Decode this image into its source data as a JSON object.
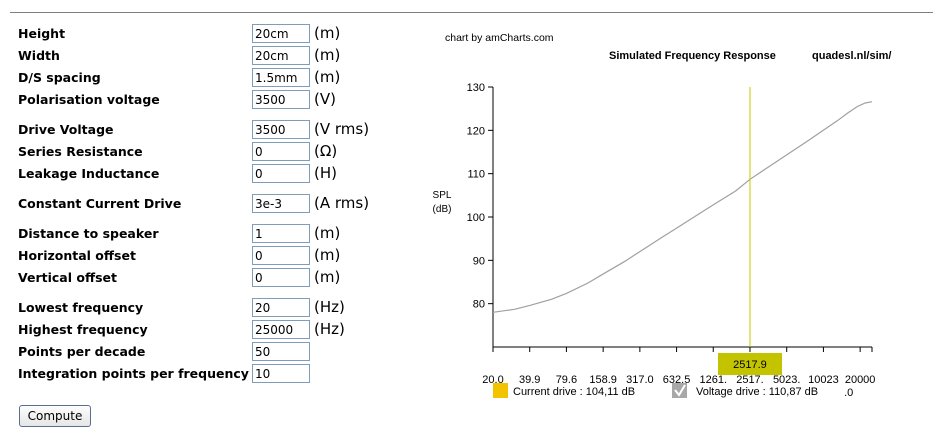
{
  "form": {
    "fields": [
      {
        "label": "Height",
        "value": "20cm",
        "unit": "(m)"
      },
      {
        "label": "Width",
        "value": "20cm",
        "unit": "(m)"
      },
      {
        "label": "D/S spacing",
        "value": "1.5mm",
        "unit": "(m)"
      },
      {
        "label": "Polarisation voltage",
        "value": "3500",
        "unit": "(V)"
      },
      {
        "label": "Drive Voltage",
        "value": "3500",
        "unit": "(V rms)"
      },
      {
        "label": "Series Resistance",
        "value": "0",
        "unit": "(Ω)"
      },
      {
        "label": "Leakage Inductance",
        "value": "0",
        "unit": "(H)"
      },
      {
        "label": "Constant Current Drive",
        "value": "3e-3",
        "unit": "(A rms)"
      },
      {
        "label": "Distance to speaker",
        "value": "1",
        "unit": "(m)"
      },
      {
        "label": "Horizontal offset",
        "value": "0",
        "unit": "(m)"
      },
      {
        "label": "Vertical offset",
        "value": "0",
        "unit": "(m)"
      },
      {
        "label": "Lowest frequency",
        "value": "20",
        "unit": "(Hz)"
      },
      {
        "label": "Highest frequency",
        "value": "25000",
        "unit": "(Hz)"
      },
      {
        "label": "Points per decade",
        "value": "50",
        "unit": ""
      },
      {
        "label": "Integration points per frequency",
        "value": "10",
        "unit": ""
      }
    ],
    "compute_label": "Compute"
  },
  "chart": {
    "credit": "chart by amCharts.com",
    "site": "quadesl.nl/sim/"
  },
  "chart_data": {
    "type": "line",
    "title": "Simulated Frequency Response",
    "ylabel": "SPL (dB)",
    "ylabel_lines": [
      "SPL",
      "(dB)"
    ],
    "ylim": [
      70,
      130
    ],
    "yticks": [
      80,
      90,
      100,
      110,
      120,
      130
    ],
    "xscale": "log",
    "xlim": [
      20,
      25000
    ],
    "xticks": [
      "20.0",
      "39.9",
      "79.6",
      "158.9",
      "317.0",
      "632.5",
      "1261.",
      "2517.",
      "5023.",
      "10023",
      "20000"
    ],
    "x_tick_values": [
      20,
      39.9,
      79.6,
      158.9,
      317,
      632.5,
      1261,
      2517,
      5023,
      10023,
      20000
    ],
    "x_extra_label": ".0",
    "cursor": {
      "x": 2517.9,
      "label": "2517.9"
    },
    "series": [
      {
        "name": "Current drive : 104,11 dB",
        "color": "#f2c400",
        "visible": true,
        "values": []
      },
      {
        "name": "Voltage drive : 110,87 dB",
        "color": "#a0a0a0",
        "visible": true,
        "x": [
          20,
          30,
          40,
          60,
          80,
          120,
          160,
          240,
          320,
          480,
          640,
          960,
          1280,
          1920,
          2518,
          3500,
          5000,
          7500,
          10000,
          13000,
          16000,
          19000,
          22000,
          25000
        ],
        "values": [
          78.0,
          78.7,
          79.6,
          81.0,
          82.4,
          84.8,
          86.9,
          89.8,
          92.1,
          95.3,
          97.5,
          100.7,
          102.9,
          106.0,
          108.7,
          111.4,
          114.3,
          117.6,
          120.0,
          122.2,
          124.1,
          125.5,
          126.3,
          126.6
        ]
      }
    ],
    "legend": "bottom"
  }
}
